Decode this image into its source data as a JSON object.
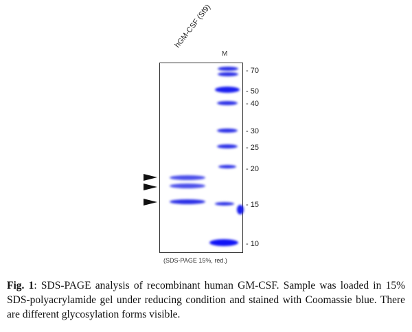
{
  "figure": {
    "lane_label": "hGM-CSF (Sf9)",
    "marker_label": "M",
    "mw_markers": [
      "70",
      "50",
      "40",
      "30",
      "25",
      "20",
      "15",
      "10"
    ],
    "gel_note": "(SDS-PAGE 15%, red.)",
    "band_color": "#2a2ee6"
  },
  "caption": {
    "label": "Fig. 1",
    "text": ": SDS-PAGE analysis of recombinant human GM-CSF. Sample was loaded in 15% SDS-polyacrylamide gel under reducing condition and stained with Coomassie blue. There are different glycosylation forms visible."
  }
}
